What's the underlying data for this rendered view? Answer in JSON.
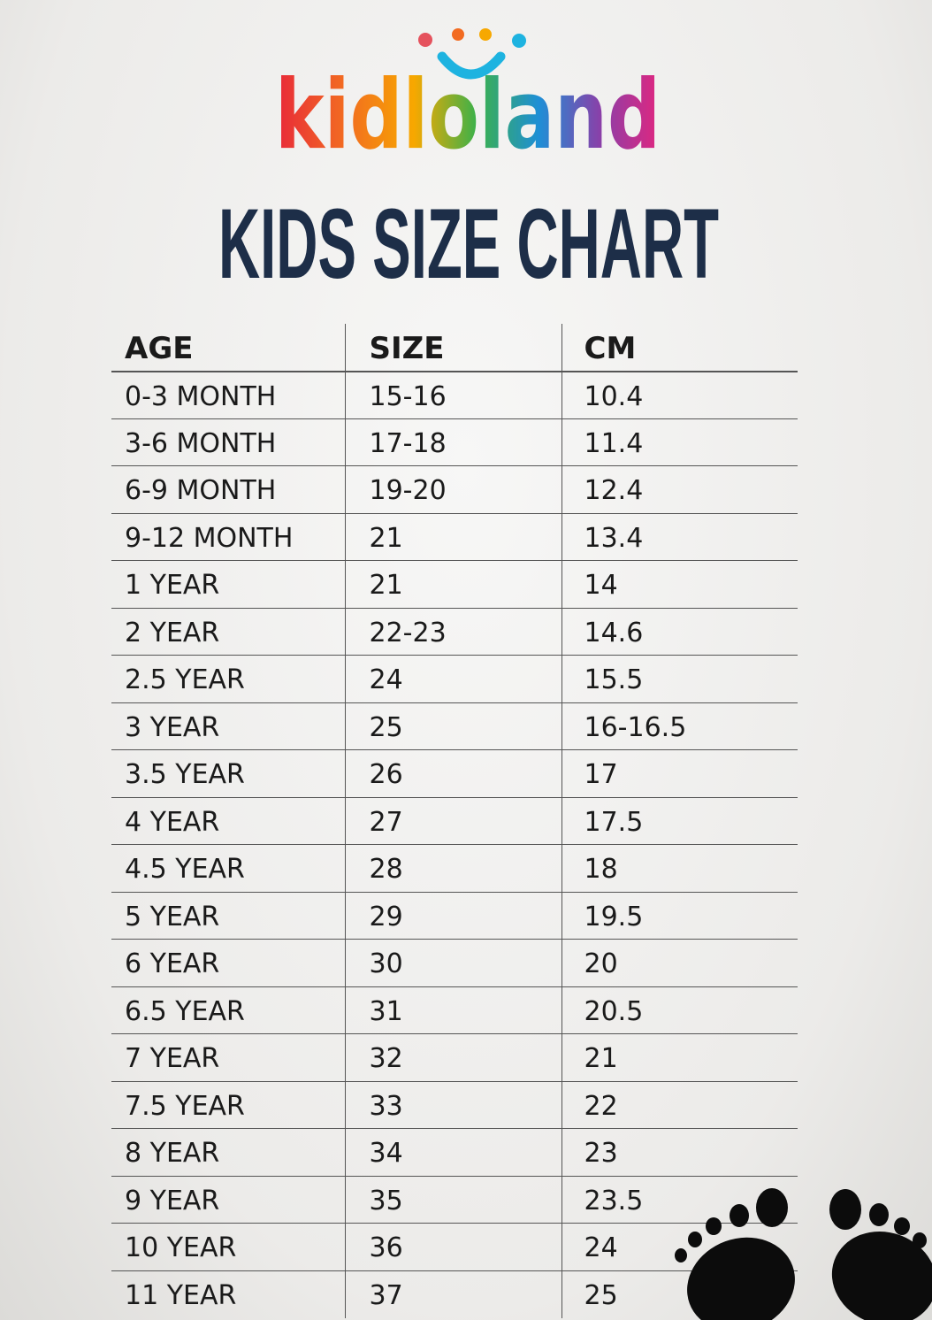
{
  "header": {
    "logo": "kidloland",
    "title": "KIDS SIZE CHART"
  },
  "table": {
    "columns": [
      "AGE",
      "SIZE",
      "CM"
    ],
    "rows": [
      [
        "0-3 MONTH",
        "15-16",
        "10.4"
      ],
      [
        "3-6 MONTH",
        "17-18",
        "11.4"
      ],
      [
        "6-9 MONTH",
        "19-20",
        "12.4"
      ],
      [
        "9-12 MONTH",
        "21",
        "13.4"
      ],
      [
        "1 YEAR",
        "21",
        "14"
      ],
      [
        "2 YEAR",
        "22-23",
        "14.6"
      ],
      [
        "2.5 YEAR",
        "24",
        "15.5"
      ],
      [
        "3 YEAR",
        "25",
        "16-16.5"
      ],
      [
        "3.5 YEAR",
        "26",
        "17"
      ],
      [
        "4 YEAR",
        "27",
        "17.5"
      ],
      [
        "4.5 YEAR",
        "28",
        "18"
      ],
      [
        "5 YEAR",
        "29",
        "19.5"
      ],
      [
        "6 YEAR",
        "30",
        "20"
      ],
      [
        "6.5 YEAR",
        "31",
        "20.5"
      ],
      [
        "7 YEAR",
        "32",
        "21"
      ],
      [
        "7.5 YEAR",
        "33",
        "22"
      ],
      [
        "8 YEAR",
        "34",
        "23"
      ],
      [
        "9 YEAR",
        "35",
        "23.5"
      ],
      [
        "10 YEAR",
        "36",
        "24"
      ],
      [
        "11 YEAR",
        "37",
        "25"
      ]
    ]
  }
}
